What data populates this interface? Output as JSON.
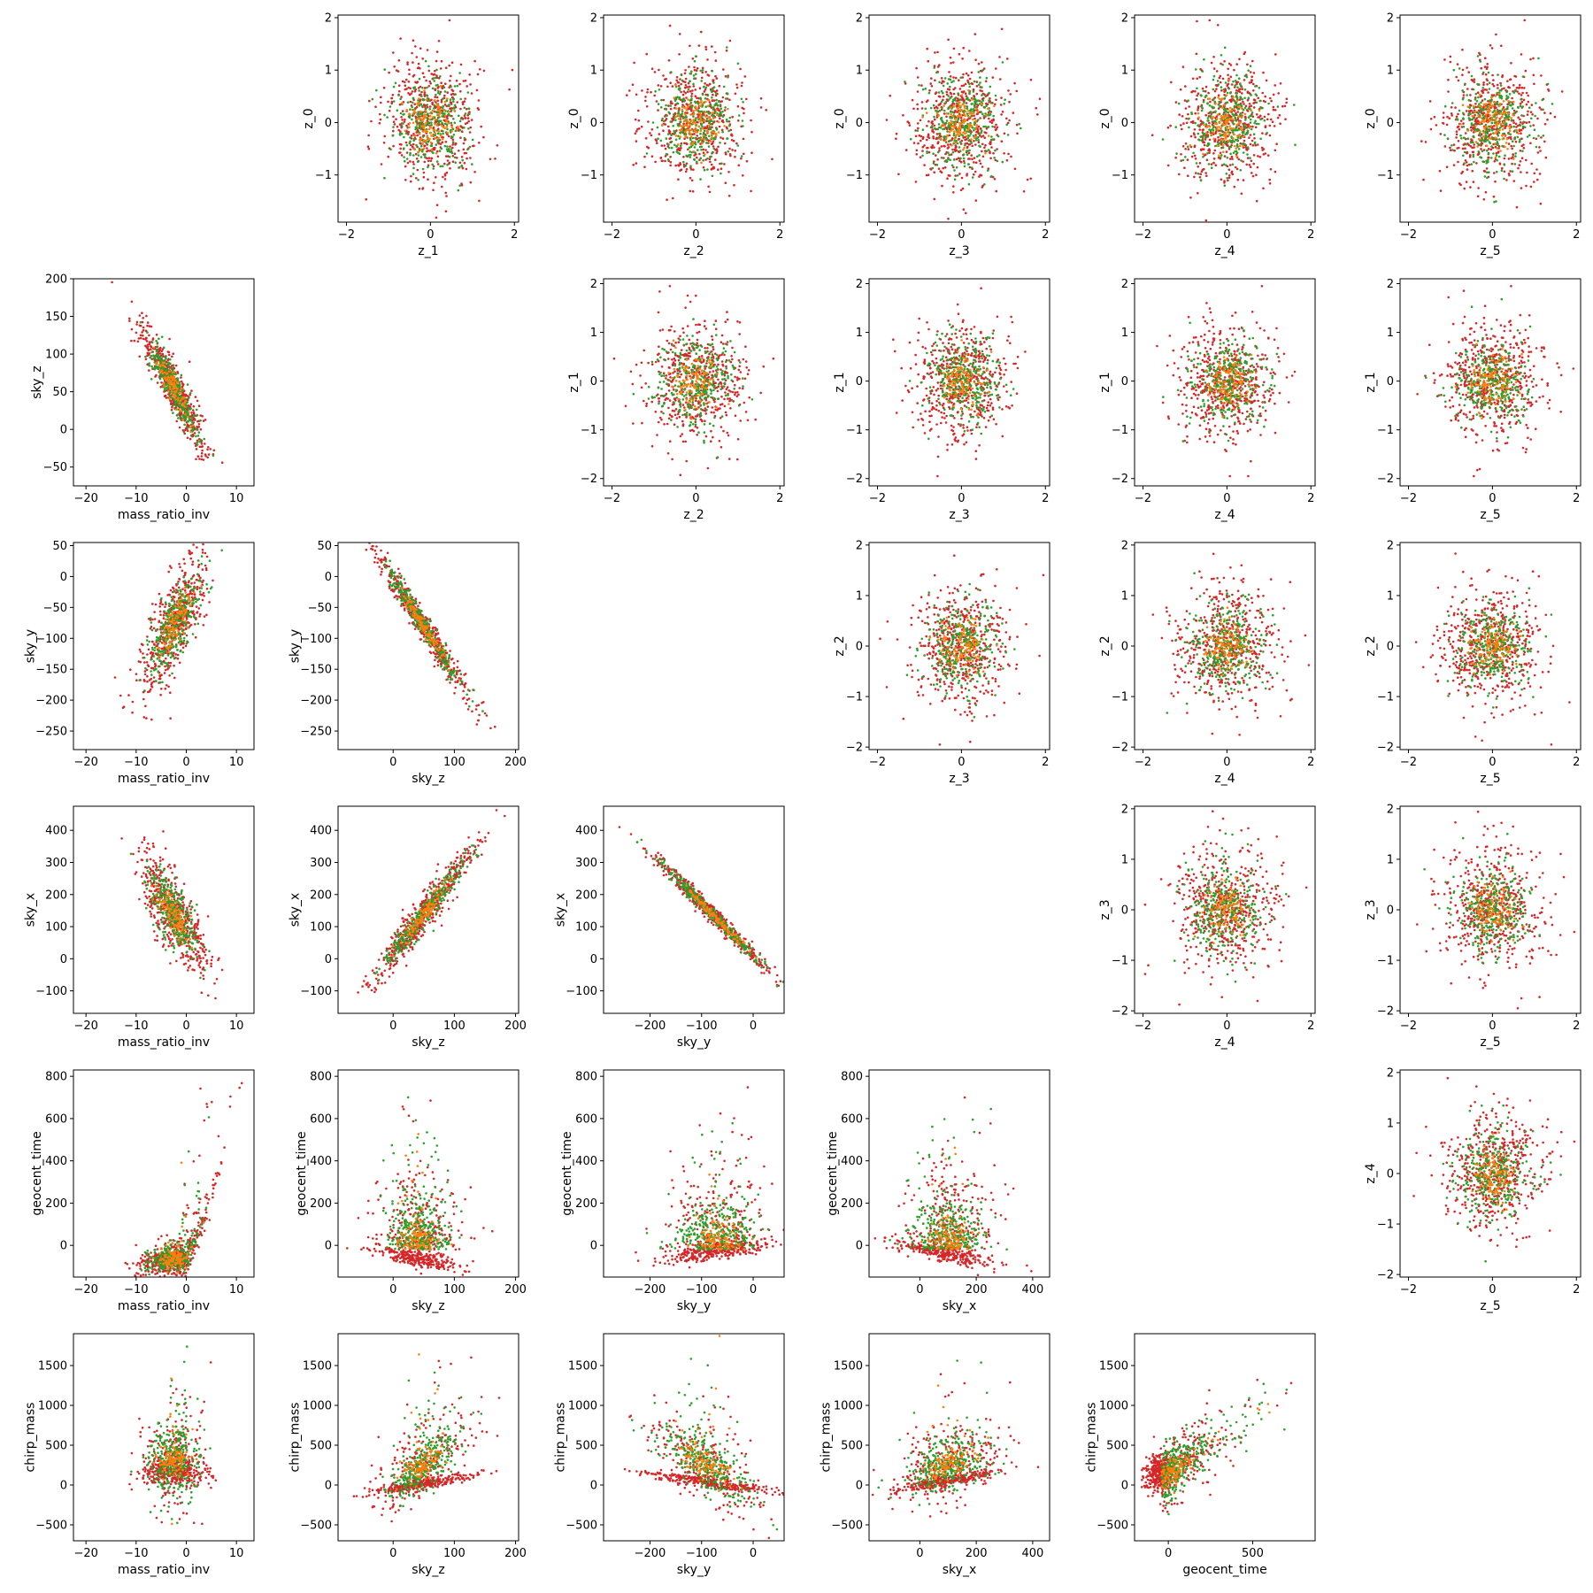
{
  "figure": {
    "point_colors": {
      "red": "#d62728",
      "green": "#2ca02c",
      "orange": "#ff7f0e"
    },
    "layout": "lower-triangle + upper-triangle pairwise scatter grid, 6 rows x 6 columns"
  },
  "chart_data": [
    {
      "type": "scatter",
      "row": 0,
      "col": 1,
      "xlabel": "z_1",
      "ylabel": "z_0",
      "xlim": [
        -2.2,
        2.1
      ],
      "ylim": [
        -1.9,
        2.05
      ],
      "xticks": [
        -2,
        0,
        2
      ],
      "yticks": [
        -1,
        0,
        1,
        2
      ],
      "xlabels": [
        "−2",
        "0",
        "2"
      ],
      "ylabels": [
        "−1",
        "0",
        "1",
        "2"
      ],
      "pattern": "iso",
      "sx": 0.6,
      "sy": 0.6,
      "seed": 11
    },
    {
      "type": "scatter",
      "row": 0,
      "col": 2,
      "xlabel": "z_2",
      "ylabel": "z_0",
      "xlim": [
        -2.2,
        2.1
      ],
      "ylim": [
        -1.9,
        2.05
      ],
      "xticks": [
        -2,
        0,
        2
      ],
      "yticks": [
        -1,
        0,
        1,
        2
      ],
      "xlabels": [
        "−2",
        "0",
        "2"
      ],
      "ylabels": [
        "−1",
        "0",
        "1",
        "2"
      ],
      "pattern": "iso",
      "sx": 0.6,
      "sy": 0.6,
      "seed": 12
    },
    {
      "type": "scatter",
      "row": 0,
      "col": 3,
      "xlabel": "z_3",
      "ylabel": "z_0",
      "xlim": [
        -2.2,
        2.1
      ],
      "ylim": [
        -1.9,
        2.05
      ],
      "xticks": [
        -2,
        0,
        2
      ],
      "yticks": [
        -1,
        0,
        1,
        2
      ],
      "xlabels": [
        "−2",
        "0",
        "2"
      ],
      "ylabels": [
        "−1",
        "0",
        "1",
        "2"
      ],
      "pattern": "iso",
      "sx": 0.6,
      "sy": 0.6,
      "seed": 13
    },
    {
      "type": "scatter",
      "row": 0,
      "col": 4,
      "xlabel": "z_4",
      "ylabel": "z_0",
      "xlim": [
        -2.2,
        2.1
      ],
      "ylim": [
        -1.9,
        2.05
      ],
      "xticks": [
        -2,
        0,
        2
      ],
      "yticks": [
        -1,
        0,
        1,
        2
      ],
      "xlabels": [
        "−2",
        "0",
        "2"
      ],
      "ylabels": [
        "−1",
        "0",
        "1",
        "2"
      ],
      "pattern": "iso",
      "sx": 0.6,
      "sy": 0.6,
      "seed": 14
    },
    {
      "type": "scatter",
      "row": 0,
      "col": 5,
      "xlabel": "z_5",
      "ylabel": "z_0",
      "xlim": [
        -2.2,
        2.1
      ],
      "ylim": [
        -1.9,
        2.05
      ],
      "xticks": [
        -2,
        0,
        2
      ],
      "yticks": [
        -1,
        0,
        1,
        2
      ],
      "xlabels": [
        "−2",
        "0",
        "2"
      ],
      "ylabels": [
        "−1",
        "0",
        "1",
        "2"
      ],
      "pattern": "iso",
      "sx": 0.6,
      "sy": 0.6,
      "seed": 15
    },
    {
      "type": "scatter",
      "row": 1,
      "col": 0,
      "xlabel": "mass_ratio_inv",
      "ylabel": "sky_z",
      "xlim": [
        -22.5,
        13.5
      ],
      "ylim": [
        -75,
        200
      ],
      "xticks": [
        -20,
        -10,
        0,
        10
      ],
      "yticks": [
        -50,
        0,
        50,
        100,
        150,
        200
      ],
      "xlabels": [
        "−20",
        "−10",
        "0",
        "10"
      ],
      "ylabels": [
        "−50",
        "0",
        "50",
        "100",
        "150",
        "200"
      ],
      "pattern": "linear",
      "mx": -2.5,
      "sx": 3.5,
      "my": 55,
      "slope": -11.5,
      "noise": 18,
      "seed": 21
    },
    {
      "type": "scatter",
      "row": 1,
      "col": 2,
      "xlabel": "z_2",
      "ylabel": "z_1",
      "xlim": [
        -2.2,
        2.1
      ],
      "ylim": [
        -2.15,
        2.1
      ],
      "xticks": [
        -2,
        0,
        2
      ],
      "yticks": [
        -2,
        -1,
        0,
        1,
        2
      ],
      "xlabels": [
        "−2",
        "0",
        "2"
      ],
      "ylabels": [
        "−2",
        "−1",
        "0",
        "1",
        "2"
      ],
      "pattern": "iso",
      "sx": 0.6,
      "sy": 0.6,
      "seed": 22
    },
    {
      "type": "scatter",
      "row": 1,
      "col": 3,
      "xlabel": "z_3",
      "ylabel": "z_1",
      "xlim": [
        -2.2,
        2.1
      ],
      "ylim": [
        -2.15,
        2.1
      ],
      "xticks": [
        -2,
        0,
        2
      ],
      "yticks": [
        -2,
        -1,
        0,
        1,
        2
      ],
      "xlabels": [
        "−2",
        "0",
        "2"
      ],
      "ylabels": [
        "−2",
        "−1",
        "0",
        "1",
        "2"
      ],
      "pattern": "iso",
      "sx": 0.6,
      "sy": 0.6,
      "seed": 23
    },
    {
      "type": "scatter",
      "row": 1,
      "col": 4,
      "xlabel": "z_4",
      "ylabel": "z_1",
      "xlim": [
        -2.2,
        2.1
      ],
      "ylim": [
        -2.15,
        2.1
      ],
      "xticks": [
        -2,
        0,
        2
      ],
      "yticks": [
        -2,
        -1,
        0,
        1,
        2
      ],
      "xlabels": [
        "−2",
        "0",
        "2"
      ],
      "ylabels": [
        "−2",
        "−1",
        "0",
        "1",
        "2"
      ],
      "pattern": "iso",
      "sx": 0.6,
      "sy": 0.6,
      "seed": 24
    },
    {
      "type": "scatter",
      "row": 1,
      "col": 5,
      "xlabel": "z_5",
      "ylabel": "z_1",
      "xlim": [
        -2.2,
        2.1
      ],
      "ylim": [
        -2.15,
        2.1
      ],
      "xticks": [
        -2,
        0,
        2
      ],
      "yticks": [
        -2,
        -1,
        0,
        1,
        2
      ],
      "xlabels": [
        "−2",
        "0",
        "2"
      ],
      "ylabels": [
        "−2",
        "−1",
        "0",
        "1",
        "2"
      ],
      "pattern": "iso",
      "sx": 0.6,
      "sy": 0.6,
      "seed": 25
    },
    {
      "type": "scatter",
      "row": 2,
      "col": 0,
      "xlabel": "mass_ratio_inv",
      "ylabel": "sky_y",
      "xlim": [
        -22.5,
        13.5
      ],
      "ylim": [
        -280,
        55
      ],
      "xticks": [
        -20,
        -10,
        0,
        10
      ],
      "yticks": [
        -250,
        -200,
        -150,
        -100,
        -50,
        0,
        50
      ],
      "xlabels": [
        "−20",
        "−10",
        "0",
        "10"
      ],
      "ylabels": [
        "−250",
        "−200",
        "−150",
        "−100",
        "−50",
        "0",
        "50"
      ],
      "pattern": "linear",
      "mx": -2.5,
      "sx": 3.5,
      "my": -80,
      "slope": 12,
      "noise": 38,
      "seed": 31
    },
    {
      "type": "scatter",
      "row": 2,
      "col": 1,
      "xlabel": "sky_z",
      "ylabel": "sky_y",
      "xlim": [
        -90,
        205
      ],
      "ylim": [
        -280,
        55
      ],
      "xticks": [
        0,
        100,
        200
      ],
      "yticks": [
        -250,
        -200,
        -150,
        -100,
        -50,
        0,
        50
      ],
      "xlabels": [
        "0",
        "100",
        "200"
      ],
      "ylabels": [
        "−250",
        "−200",
        "−150",
        "−100",
        "−50",
        "0",
        "50"
      ],
      "pattern": "linear",
      "mx": 50,
      "sx": 42,
      "my": -80,
      "slope": -1.5,
      "noise": 13,
      "seed": 32
    },
    {
      "type": "scatter",
      "row": 2,
      "col": 3,
      "xlabel": "z_3",
      "ylabel": "z_2",
      "xlim": [
        -2.2,
        2.1
      ],
      "ylim": [
        -2.05,
        2.05
      ],
      "xticks": [
        -2,
        0,
        2
      ],
      "yticks": [
        -2,
        -1,
        0,
        1,
        2
      ],
      "xlabels": [
        "−2",
        "0",
        "2"
      ],
      "ylabels": [
        "−2",
        "−1",
        "0",
        "1",
        "2"
      ],
      "pattern": "iso",
      "sx": 0.6,
      "sy": 0.6,
      "seed": 33
    },
    {
      "type": "scatter",
      "row": 2,
      "col": 4,
      "xlabel": "z_4",
      "ylabel": "z_2",
      "xlim": [
        -2.2,
        2.1
      ],
      "ylim": [
        -2.05,
        2.05
      ],
      "xticks": [
        -2,
        0,
        2
      ],
      "yticks": [
        -2,
        -1,
        0,
        1,
        2
      ],
      "xlabels": [
        "−2",
        "0",
        "2"
      ],
      "ylabels": [
        "−2",
        "−1",
        "0",
        "1",
        "2"
      ],
      "pattern": "iso",
      "sx": 0.6,
      "sy": 0.6,
      "seed": 34
    },
    {
      "type": "scatter",
      "row": 2,
      "col": 5,
      "xlabel": "z_5",
      "ylabel": "z_2",
      "xlim": [
        -2.2,
        2.1
      ],
      "ylim": [
        -2.05,
        2.05
      ],
      "xticks": [
        -2,
        0,
        2
      ],
      "yticks": [
        -2,
        -1,
        0,
        1,
        2
      ],
      "xlabels": [
        "−2",
        "0",
        "2"
      ],
      "ylabels": [
        "−2",
        "−1",
        "0",
        "1",
        "2"
      ],
      "pattern": "iso",
      "sx": 0.6,
      "sy": 0.6,
      "seed": 35
    },
    {
      "type": "scatter",
      "row": 3,
      "col": 0,
      "xlabel": "mass_ratio_inv",
      "ylabel": "sky_x",
      "xlim": [
        -22.5,
        13.5
      ],
      "ylim": [
        -170,
        475
      ],
      "xticks": [
        -20,
        -10,
        0,
        10
      ],
      "yticks": [
        -100,
        0,
        100,
        200,
        300,
        400
      ],
      "xlabels": [
        "−20",
        "−10",
        "0",
        "10"
      ],
      "ylabels": [
        "−100",
        "0",
        "100",
        "200",
        "300",
        "400"
      ],
      "pattern": "linear",
      "mx": -2.5,
      "sx": 3.5,
      "my": 140,
      "slope": -19,
      "noise": 60,
      "seed": 41
    },
    {
      "type": "scatter",
      "row": 3,
      "col": 1,
      "xlabel": "sky_z",
      "ylabel": "sky_x",
      "xlim": [
        -90,
        205
      ],
      "ylim": [
        -170,
        475
      ],
      "xticks": [
        0,
        100,
        200
      ],
      "yticks": [
        -100,
        0,
        100,
        200,
        300,
        400
      ],
      "xlabels": [
        "0",
        "100",
        "200"
      ],
      "ylabels": [
        "−100",
        "0",
        "100",
        "200",
        "300",
        "400"
      ],
      "pattern": "linear",
      "mx": 50,
      "sx": 42,
      "my": 140,
      "slope": 2.4,
      "noise": 30,
      "seed": 42
    },
    {
      "type": "scatter",
      "row": 3,
      "col": 2,
      "xlabel": "sky_y",
      "ylabel": "sky_x",
      "xlim": [
        -290,
        60
      ],
      "ylim": [
        -170,
        475
      ],
      "xticks": [
        -200,
        -100,
        0
      ],
      "yticks": [
        -100,
        0,
        100,
        200,
        300,
        400
      ],
      "xlabels": [
        "−200",
        "−100",
        "0"
      ],
      "ylabels": [
        "−100",
        "0",
        "100",
        "200",
        "300",
        "400"
      ],
      "pattern": "linear",
      "mx": -80,
      "sx": 60,
      "my": 140,
      "slope": -1.6,
      "noise": 14,
      "seed": 43
    },
    {
      "type": "scatter",
      "row": 3,
      "col": 4,
      "xlabel": "z_4",
      "ylabel": "z_3",
      "xlim": [
        -2.2,
        2.1
      ],
      "ylim": [
        -2.05,
        2.05
      ],
      "xticks": [
        -2,
        0,
        2
      ],
      "yticks": [
        -2,
        -1,
        0,
        1,
        2
      ],
      "xlabels": [
        "−2",
        "0",
        "2"
      ],
      "ylabels": [
        "−2",
        "−1",
        "0",
        "1",
        "2"
      ],
      "pattern": "iso",
      "sx": 0.6,
      "sy": 0.6,
      "seed": 44
    },
    {
      "type": "scatter",
      "row": 3,
      "col": 5,
      "xlabel": "z_5",
      "ylabel": "z_3",
      "xlim": [
        -2.2,
        2.1
      ],
      "ylim": [
        -2.05,
        2.05
      ],
      "xticks": [
        -2,
        0,
        2
      ],
      "yticks": [
        -2,
        -1,
        0,
        1,
        2
      ],
      "xlabels": [
        "−2",
        "0",
        "2"
      ],
      "ylabels": [
        "−2",
        "−1",
        "0",
        "1",
        "2"
      ],
      "pattern": "iso",
      "sx": 0.6,
      "sy": 0.6,
      "seed": 45
    },
    {
      "type": "scatter",
      "row": 4,
      "col": 0,
      "xlabel": "mass_ratio_inv",
      "ylabel": "geocent_time",
      "xlim": [
        -22.5,
        13.5
      ],
      "ylim": [
        -150,
        830
      ],
      "xticks": [
        -20,
        -10,
        0,
        10
      ],
      "yticks": [
        0,
        200,
        400,
        600,
        800
      ],
      "xlabels": [
        "−20",
        "−10",
        "0",
        "10"
      ],
      "ylabels": [
        "0",
        "200",
        "400",
        "600",
        "800"
      ],
      "pattern": "hockey",
      "seed": 51
    },
    {
      "type": "scatter",
      "row": 4,
      "col": 1,
      "xlabel": "sky_z",
      "ylabel": "geocent_time",
      "xlim": [
        -90,
        205
      ],
      "ylim": [
        -150,
        830
      ],
      "xticks": [
        0,
        100,
        200
      ],
      "yticks": [
        0,
        200,
        400,
        600,
        800
      ],
      "xlabels": [
        "0",
        "100",
        "200"
      ],
      "ylabels": [
        "0",
        "200",
        "400",
        "600",
        "800"
      ],
      "pattern": "fan",
      "mx": 40,
      "sx": 35,
      "bx": 0,
      "bslope": -0.55,
      "seed": 52
    },
    {
      "type": "scatter",
      "row": 4,
      "col": 2,
      "xlabel": "sky_y",
      "ylabel": "geocent_time",
      "xlim": [
        -290,
        60
      ],
      "ylim": [
        -150,
        830
      ],
      "xticks": [
        -200,
        -100,
        0
      ],
      "yticks": [
        0,
        200,
        400,
        600,
        800
      ],
      "xlabels": [
        "−200",
        "−100",
        "0"
      ],
      "ylabels": [
        "0",
        "200",
        "400",
        "600",
        "800"
      ],
      "pattern": "fan",
      "mx": -70,
      "sx": 50,
      "bx": -100,
      "bslope": 0.35,
      "seed": 53
    },
    {
      "type": "scatter",
      "row": 4,
      "col": 3,
      "xlabel": "sky_x",
      "ylabel": "geocent_time",
      "xlim": [
        -180,
        460
      ],
      "ylim": [
        -150,
        830
      ],
      "xticks": [
        0,
        200,
        400
      ],
      "yticks": [
        0,
        200,
        400,
        600,
        800
      ],
      "xlabels": [
        "0",
        "200",
        "400"
      ],
      "ylabels": [
        "0",
        "200",
        "400",
        "600",
        "800"
      ],
      "pattern": "fan",
      "mx": 100,
      "sx": 90,
      "bx": 100,
      "bslope": -0.25,
      "seed": 54
    },
    {
      "type": "scatter",
      "row": 4,
      "col": 5,
      "xlabel": "z_5",
      "ylabel": "z_4",
      "xlim": [
        -2.2,
        2.1
      ],
      "ylim": [
        -2.05,
        2.05
      ],
      "xticks": [
        -2,
        0,
        2
      ],
      "yticks": [
        -2,
        -1,
        0,
        1,
        2
      ],
      "xlabels": [
        "−2",
        "0",
        "2"
      ],
      "ylabels": [
        "−2",
        "−1",
        "0",
        "1",
        "2"
      ],
      "pattern": "iso",
      "sx": 0.6,
      "sy": 0.6,
      "seed": 55
    },
    {
      "type": "scatter",
      "row": 5,
      "col": 0,
      "xlabel": "mass_ratio_inv",
      "ylabel": "chirp_mass",
      "xlim": [
        -22.5,
        13.5
      ],
      "ylim": [
        -700,
        1900
      ],
      "xticks": [
        -20,
        -10,
        0,
        10
      ],
      "yticks": [
        -500,
        0,
        500,
        1000,
        1500
      ],
      "xlabels": [
        "−20",
        "−10",
        "0",
        "10"
      ],
      "ylabels": [
        "−500",
        "0",
        "500",
        "1000",
        "1500"
      ],
      "pattern": "chirp_q",
      "seed": 61
    },
    {
      "type": "scatter",
      "row": 5,
      "col": 1,
      "xlabel": "sky_z",
      "ylabel": "chirp_mass",
      "xlim": [
        -90,
        205
      ],
      "ylim": [
        -700,
        1900
      ],
      "xticks": [
        0,
        100,
        200
      ],
      "yticks": [
        -500,
        0,
        500,
        1000,
        1500
      ],
      "xlabels": [
        "0",
        "100",
        "200"
      ],
      "ylabels": [
        "−500",
        "0",
        "500",
        "1000",
        "1500"
      ],
      "pattern": "chirp_band",
      "mx": 50,
      "sx": 40,
      "b0": 20,
      "bslope": 1.3,
      "cslope": 9,
      "seed": 62
    },
    {
      "type": "scatter",
      "row": 5,
      "col": 2,
      "xlabel": "sky_y",
      "ylabel": "chirp_mass",
      "xlim": [
        -290,
        60
      ],
      "ylim": [
        -700,
        1900
      ],
      "xticks": [
        -200,
        -100,
        0
      ],
      "yticks": [
        -500,
        0,
        500,
        1000,
        1500
      ],
      "xlabels": [
        "−200",
        "−100",
        "0"
      ],
      "ylabels": [
        "−500",
        "0",
        "500",
        "1000",
        "1500"
      ],
      "pattern": "chirp_band",
      "mx": -90,
      "sx": 60,
      "b0": 40,
      "bslope": -0.9,
      "cslope": -6,
      "seed": 63
    },
    {
      "type": "scatter",
      "row": 5,
      "col": 3,
      "xlabel": "sky_x",
      "ylabel": "chirp_mass",
      "xlim": [
        -180,
        460
      ],
      "ylim": [
        -700,
        1900
      ],
      "xticks": [
        0,
        200,
        400
      ],
      "yticks": [
        -500,
        0,
        500,
        1000,
        1500
      ],
      "xlabels": [
        "0",
        "200",
        "400"
      ],
      "ylabels": [
        "−500",
        "0",
        "500",
        "1000",
        "1500"
      ],
      "pattern": "chirp_band",
      "mx": 100,
      "sx": 95,
      "b0": 50,
      "bslope": 0.6,
      "cslope": 1.8,
      "seed": 64
    },
    {
      "type": "scatter",
      "row": 5,
      "col": 4,
      "xlabel": "geocent_time",
      "ylabel": "chirp_mass",
      "xlim": [
        -200,
        870
      ],
      "ylim": [
        -700,
        1900
      ],
      "xticks": [
        0,
        500
      ],
      "yticks": [
        -500,
        0,
        500,
        1000,
        1500
      ],
      "xlabels": [
        "0",
        "500"
      ],
      "ylabels": [
        "−500",
        "0",
        "500",
        "1000",
        "1500"
      ],
      "pattern": "chirp_t",
      "seed": 65
    }
  ]
}
